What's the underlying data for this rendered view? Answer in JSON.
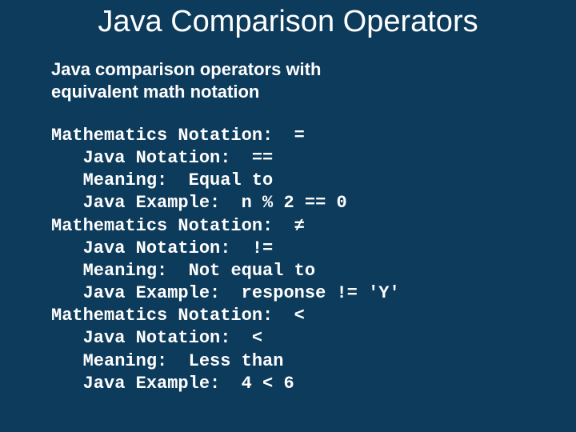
{
  "colors": {
    "background": "#0d3b5c",
    "text": "#ffffff"
  },
  "title": "Java Comparison Operators",
  "subtitle_line1": "Java comparison operators with",
  "subtitle_line2": "equivalent math notation",
  "labels": {
    "math": "Mathematics Notation:",
    "java": "Java Notation:",
    "meaning": "Meaning:",
    "example": "Java Example:"
  },
  "entries": [
    {
      "math": "=",
      "java": "==",
      "meaning": "Equal to",
      "example": "n % 2 == 0"
    },
    {
      "math": "≠",
      "java": "!=",
      "meaning": "Not equal to",
      "example": "response != 'Y'"
    },
    {
      "math": "<",
      "java": "<",
      "meaning": "Less than",
      "example": "4 < 6"
    }
  ]
}
